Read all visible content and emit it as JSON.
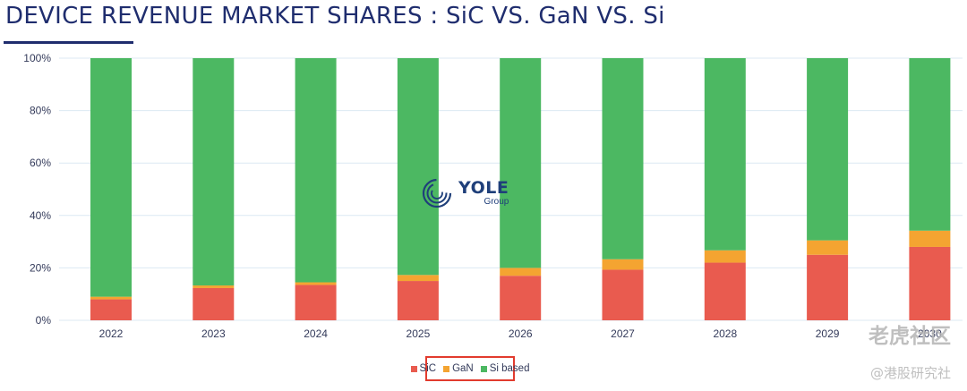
{
  "header": {
    "title": "DEVICE REVENUE MARKET SHARES : SiC VS. GaN VS. Si"
  },
  "logo": {
    "name": "YOLE",
    "sub": "Group"
  },
  "watermark": {
    "main": "老虎社区",
    "sub": "@港股研究社"
  },
  "colors": {
    "SiC": "#e95b4f",
    "GaN": "#f4a431",
    "Si based": "#4cb862",
    "grid": "#dce9f3",
    "title": "#1f2d6e"
  },
  "chart_data": {
    "type": "bar",
    "stacked": true,
    "title": "DEVICE REVENUE MARKET SHARES : SiC VS. GaN VS. Si",
    "categories": [
      "2022",
      "2023",
      "2024",
      "2025",
      "2026",
      "2027",
      "2028",
      "2029",
      "2030"
    ],
    "ylim": [
      0,
      100
    ],
    "yticks": [
      "0%",
      "20%",
      "40%",
      "60%",
      "80%",
      "100%"
    ],
    "grid": true,
    "legend_position": "bottom-center",
    "series": [
      {
        "name": "SiC",
        "color": "#e95b4f",
        "values": [
          8,
          12.3,
          13.5,
          15,
          17,
          19.3,
          22,
          25,
          28
        ]
      },
      {
        "name": "GaN",
        "color": "#f4a431",
        "values": [
          1,
          1,
          1,
          2.3,
          3,
          4,
          4.7,
          5.5,
          6.2
        ]
      },
      {
        "name": "Si based",
        "color": "#4cb862",
        "values": [
          91,
          86.7,
          85.5,
          82.7,
          80,
          76.7,
          73.3,
          69.5,
          65.8
        ]
      }
    ]
  }
}
